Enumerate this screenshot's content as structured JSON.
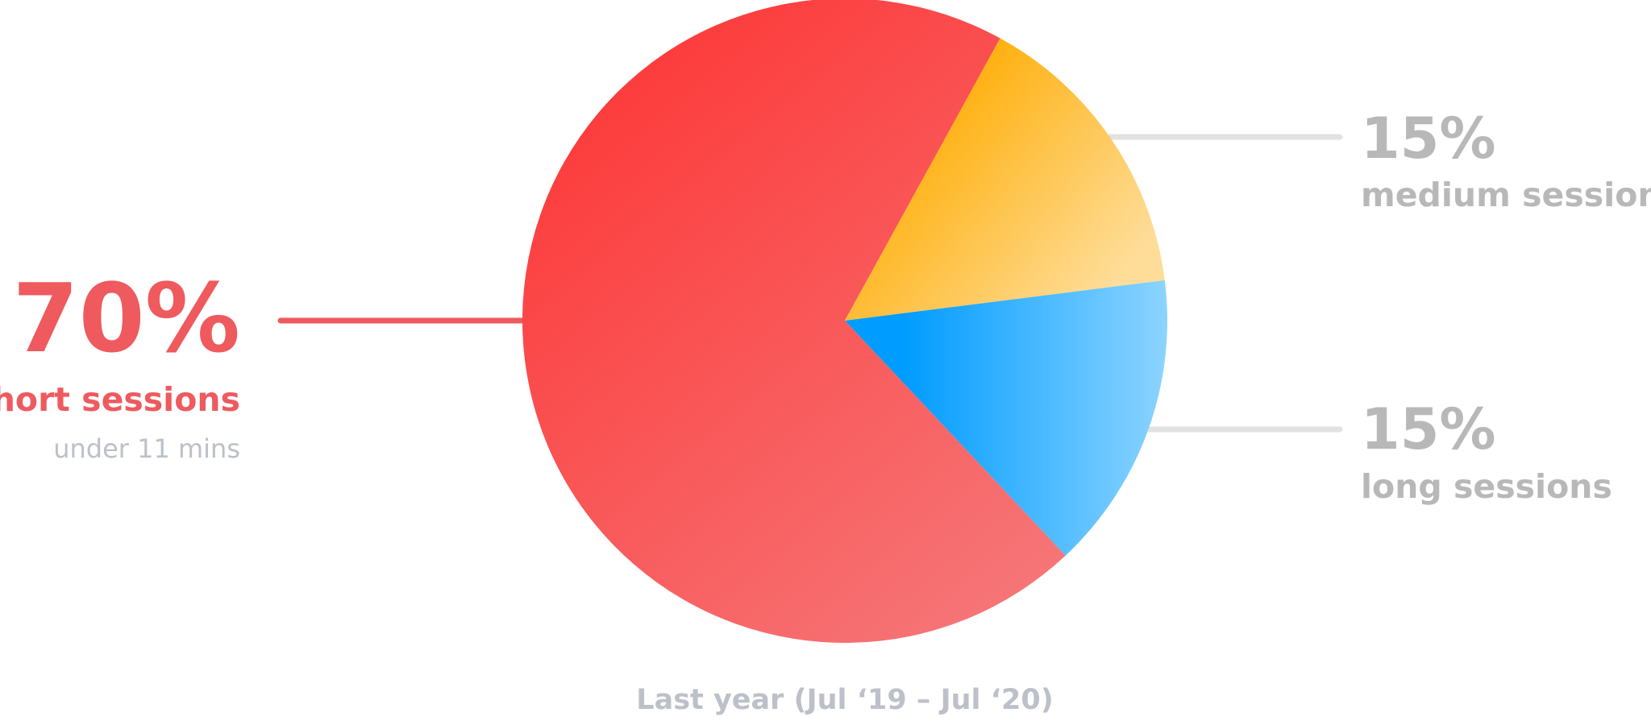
{
  "chart_data": {
    "type": "pie",
    "subtitle": "Last year (Jul ‘19 – Jul ‘20)",
    "legend": "callouts",
    "slices": [
      {
        "key": "short",
        "percent_label": "70%",
        "value": 70,
        "label": "short sessions",
        "note": "under 11 mins",
        "color": "#f05a5f",
        "gradient": [
          "#fd3838",
          "#f57a7c"
        ],
        "text_color": "#ee5a5e"
      },
      {
        "key": "medium",
        "percent_label": "15%",
        "value": 15,
        "label": "medium sessions",
        "color": "#ffc04a",
        "gradient": [
          "#ffab00",
          "#fedd99"
        ],
        "text_color": "#b8b8b8"
      },
      {
        "key": "long",
        "percent_label": "15%",
        "value": 15,
        "label": "long sessions",
        "color": "#48b8ff",
        "gradient": [
          "#009cff",
          "#8dd4ff"
        ],
        "text_color": "#b8b8b8"
      }
    ],
    "caption_color": "#bcc0c8",
    "leader_color_muted": "#e2e2e2"
  }
}
